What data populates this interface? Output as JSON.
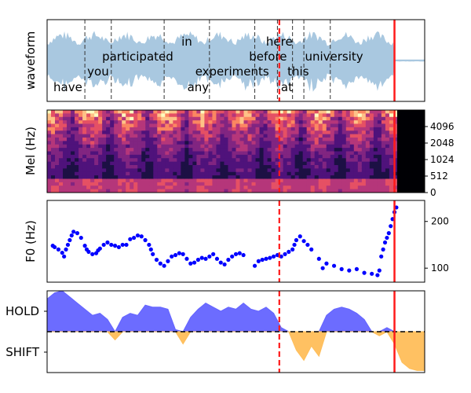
{
  "chart_data": [
    {
      "type": "line",
      "panel": "waveform",
      "ylabel": "waveform",
      "xlim": [
        0,
        1
      ],
      "waveform_color": "#a9c8e0",
      "silence_from": 0.92,
      "markers": {
        "dashed_red": 0.615,
        "solid_red": 0.92
      },
      "word_boundaries": [
        0.1,
        0.17,
        0.31,
        0.43,
        0.55,
        0.61,
        0.65,
        0.68,
        0.75
      ],
      "words": [
        {
          "text": "have",
          "x": 0.055,
          "row": 3
        },
        {
          "text": "you",
          "x": 0.135,
          "row": 2
        },
        {
          "text": "participated",
          "x": 0.24,
          "row": 1
        },
        {
          "text": "in",
          "x": 0.37,
          "row": 0
        },
        {
          "text": "any",
          "x": 0.4,
          "row": 3
        },
        {
          "text": "experiments",
          "x": 0.49,
          "row": 2
        },
        {
          "text": "before",
          "x": 0.585,
          "row": 1
        },
        {
          "text": "here",
          "x": 0.615,
          "row": 0
        },
        {
          "text": "at",
          "x": 0.635,
          "row": 3
        },
        {
          "text": "this",
          "x": 0.665,
          "row": 2
        },
        {
          "text": "university",
          "x": 0.76,
          "row": 1
        }
      ]
    },
    {
      "type": "heatmap",
      "panel": "mel",
      "ylabel": "Mel (Hz)",
      "yticks": [
        "0",
        "512",
        "1024",
        "2048",
        "4096"
      ],
      "silence_from": 0.92,
      "markers": {
        "dashed_red": 0.615,
        "solid_red": 0.92
      }
    },
    {
      "type": "scatter",
      "panel": "f0",
      "ylabel": "F0 (Hz)",
      "yticks": [
        100,
        200
      ],
      "ylim": [
        70,
        245
      ],
      "point_color": "#0000ff",
      "x": [
        0.015,
        0.02,
        0.03,
        0.04,
        0.045,
        0.05,
        0.055,
        0.06,
        0.065,
        0.07,
        0.08,
        0.09,
        0.1,
        0.105,
        0.11,
        0.12,
        0.13,
        0.135,
        0.14,
        0.15,
        0.16,
        0.17,
        0.18,
        0.19,
        0.2,
        0.21,
        0.22,
        0.23,
        0.24,
        0.25,
        0.26,
        0.27,
        0.275,
        0.28,
        0.29,
        0.3,
        0.31,
        0.32,
        0.33,
        0.34,
        0.35,
        0.36,
        0.37,
        0.38,
        0.39,
        0.4,
        0.41,
        0.42,
        0.43,
        0.44,
        0.45,
        0.46,
        0.47,
        0.48,
        0.49,
        0.5,
        0.51,
        0.52,
        0.55,
        0.56,
        0.57,
        0.58,
        0.59,
        0.6,
        0.61,
        0.62,
        0.63,
        0.64,
        0.65,
        0.655,
        0.66,
        0.67,
        0.68,
        0.69,
        0.7,
        0.72,
        0.73,
        0.74,
        0.76,
        0.78,
        0.8,
        0.82,
        0.84,
        0.86,
        0.875,
        0.88,
        0.885,
        0.89,
        0.895,
        0.9,
        0.905,
        0.91,
        0.915,
        0.92,
        0.925
      ],
      "y": [
        148,
        145,
        140,
        133,
        125,
        140,
        150,
        160,
        170,
        178,
        175,
        165,
        148,
        140,
        135,
        130,
        132,
        138,
        142,
        150,
        155,
        150,
        148,
        145,
        150,
        150,
        162,
        165,
        170,
        168,
        160,
        150,
        140,
        130,
        118,
        110,
        105,
        115,
        125,
        128,
        132,
        130,
        120,
        110,
        112,
        118,
        122,
        120,
        125,
        130,
        120,
        112,
        108,
        118,
        125,
        130,
        132,
        128,
        105,
        115,
        118,
        120,
        122,
        125,
        128,
        125,
        130,
        135,
        140,
        150,
        160,
        168,
        158,
        150,
        140,
        120,
        100,
        110,
        105,
        98,
        95,
        98,
        90,
        88,
        85,
        95,
        125,
        140,
        155,
        165,
        175,
        190,
        205,
        220,
        230
      ],
      "markers": {
        "dashed_red": 0.615,
        "solid_red": 0.92
      }
    },
    {
      "type": "area",
      "panel": "turn",
      "yticks": [
        "HOLD",
        "SHIFT"
      ],
      "ylim": [
        -1.0,
        1.0
      ],
      "hold_color": "#6464ff",
      "shift_color": "#ffbe5a",
      "x": [
        0,
        0.02,
        0.04,
        0.06,
        0.08,
        0.1,
        0.12,
        0.14,
        0.16,
        0.18,
        0.2,
        0.22,
        0.24,
        0.26,
        0.28,
        0.3,
        0.32,
        0.34,
        0.36,
        0.38,
        0.4,
        0.42,
        0.44,
        0.46,
        0.48,
        0.5,
        0.52,
        0.54,
        0.56,
        0.58,
        0.6,
        0.62,
        0.64,
        0.66,
        0.68,
        0.7,
        0.72,
        0.74,
        0.76,
        0.78,
        0.8,
        0.82,
        0.84,
        0.86,
        0.88,
        0.9,
        0.92,
        0.94,
        0.96,
        0.98,
        1.0
      ],
      "y": [
        0.8,
        0.95,
        1.0,
        0.85,
        0.7,
        0.55,
        0.4,
        0.45,
        0.3,
        -0.2,
        0.35,
        0.45,
        0.4,
        0.65,
        0.6,
        0.6,
        0.55,
        0.05,
        -0.3,
        0.35,
        0.55,
        0.7,
        0.6,
        0.5,
        0.6,
        0.55,
        0.7,
        0.55,
        0.5,
        0.6,
        0.45,
        0.1,
        0.0,
        -0.45,
        -0.7,
        -0.35,
        -0.6,
        0.4,
        0.55,
        0.6,
        0.55,
        0.45,
        0.3,
        0.0,
        -0.1,
        0.1,
        -0.3,
        -0.75,
        -0.9,
        -0.95,
        -0.95
      ],
      "threshold": 0.0,
      "markers": {
        "dashed_red": 0.615,
        "solid_red": 0.92
      }
    }
  ]
}
